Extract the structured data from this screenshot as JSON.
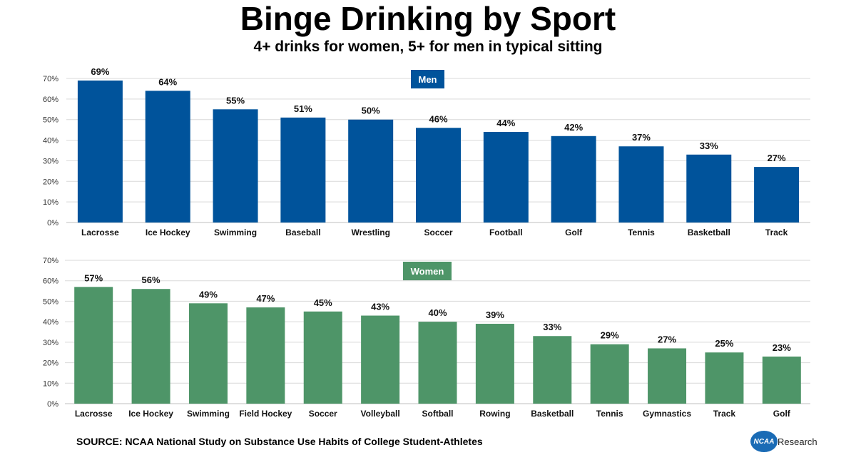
{
  "title": "Binge Drinking by Sport",
  "subtitle": "4+ drinks for women, 5+ for men in typical sitting",
  "source": "SOURCE: NCAA National Study on Substance Use Habits of College Student-Athletes",
  "logo": {
    "mark": "NCAA",
    "text": "Research"
  },
  "colors": {
    "men": "#00539b",
    "women": "#4e9568"
  },
  "chart_data": [
    {
      "type": "bar",
      "panel_label": "Men",
      "categories": [
        "Lacrosse",
        "Ice Hockey",
        "Swimming",
        "Baseball",
        "Wrestling",
        "Soccer",
        "Football",
        "Golf",
        "Tennis",
        "Basketball",
        "Track"
      ],
      "values": [
        69,
        64,
        55,
        51,
        50,
        46,
        44,
        42,
        37,
        33,
        27
      ],
      "data_labels": [
        "69%",
        "64%",
        "55%",
        "51%",
        "50%",
        "46%",
        "44%",
        "42%",
        "37%",
        "33%",
        "27%"
      ],
      "yticks": [
        "0%",
        "10%",
        "20%",
        "30%",
        "40%",
        "50%",
        "60%",
        "70%"
      ],
      "ylim": [
        0,
        70
      ],
      "grid": true
    },
    {
      "type": "bar",
      "panel_label": "Women",
      "categories": [
        "Lacrosse",
        "Ice Hockey",
        "Swimming",
        "Field Hockey",
        "Soccer",
        "Volleyball",
        "Softball",
        "Rowing",
        "Basketball",
        "Tennis",
        "Gymnastics",
        "Track",
        "Golf"
      ],
      "values": [
        57,
        56,
        49,
        47,
        45,
        43,
        40,
        39,
        33,
        29,
        27,
        25,
        23
      ],
      "data_labels": [
        "57%",
        "56%",
        "49%",
        "47%",
        "45%",
        "43%",
        "40%",
        "39%",
        "33%",
        "29%",
        "27%",
        "25%",
        "23%"
      ],
      "yticks": [
        "0%",
        "10%",
        "20%",
        "30%",
        "40%",
        "50%",
        "60%",
        "70%"
      ],
      "ylim": [
        0,
        70
      ],
      "grid": true
    }
  ]
}
